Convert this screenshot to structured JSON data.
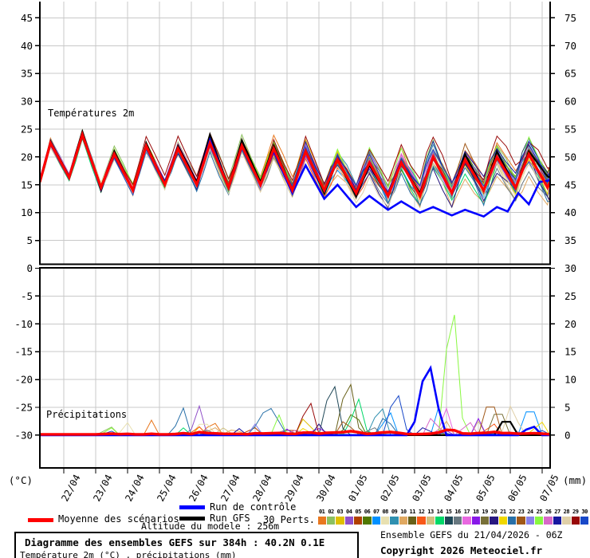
{
  "legend": {
    "mean_label": "Moyenne des scénarios",
    "control_label": "Run de contrôle",
    "gfs_label": "Run GFS",
    "perts_label": "30 Perts.",
    "mean_color": "#ff0000",
    "control_color": "#0000ff",
    "gfs_color": "#000000"
  },
  "perturbations": {
    "labels": [
      "01",
      "02",
      "03",
      "04",
      "05",
      "06",
      "07",
      "08",
      "09",
      "10",
      "11",
      "12",
      "13",
      "14",
      "15",
      "16",
      "17",
      "18",
      "19",
      "20",
      "21",
      "22",
      "23",
      "24",
      "25",
      "26",
      "27",
      "28",
      "29",
      "30"
    ],
    "colors": [
      "#e87820",
      "#8cc060",
      "#e0c000",
      "#9050c8",
      "#b04000",
      "#507800",
      "#0090ff",
      "#e8e0b0",
      "#3090b0",
      "#e0a860",
      "#686018",
      "#f85818",
      "#d0c080",
      "#00d868",
      "#204858",
      "#687880",
      "#e868e0",
      "#8818e8",
      "#787038",
      "#281880",
      "#f0d800",
      "#2870a8",
      "#a05818",
      "#8880e8",
      "#88f840",
      "#d868c8",
      "#1818a0",
      "#e0d0a8",
      "#980808",
      "#1848c8"
    ]
  },
  "footer": {
    "altitude": "Altitude du modele : 256m",
    "box_title": "Diagramme des ensembles GEFS sur 384h : 40.2N 0.1E",
    "box_subtitle": "Température 2m (°C) , précipitations (mm)",
    "credit_line1": "Ensemble GEFS du 21/04/2026 - 06Z",
    "credit_line2": "Copyright 2026 Meteociel.fr"
  },
  "chart_data": {
    "type": "line",
    "title": "Diagramme des ensembles GEFS sur 384h : 40.2N 0.1E",
    "panel_labels": {
      "temperature": "Températures 2m",
      "precipitation": "Précipitations"
    },
    "x_axis": {
      "labels": [
        "22/04",
        "23/04",
        "24/04",
        "25/04",
        "26/04",
        "27/04",
        "28/04",
        "29/04",
        "30/04",
        "01/05",
        "02/05",
        "03/05",
        "04/05",
        "05/05",
        "06/05",
        "07/05"
      ],
      "hours_range": [
        0,
        384
      ],
      "first_label_hour": 18,
      "hours_per_label": 24
    },
    "temp_axis": {
      "unit": "(°C)",
      "ticks": [
        45,
        40,
        35,
        30,
        25,
        20,
        15,
        10,
        5,
        0,
        -5,
        -10,
        -15,
        -20,
        -25,
        -30
      ],
      "zero_line": 0
    },
    "precip_axis": {
      "unit": "(mm)",
      "ticks": [
        75,
        70,
        65,
        60,
        55,
        50,
        45,
        40,
        35,
        30,
        25,
        20,
        15,
        10,
        5,
        0
      ]
    },
    "grid": true,
    "temperature": {
      "start_value": 15.5,
      "end_value": 15.5,
      "daily": [
        {
          "date": "21/04",
          "max": 22.5
        },
        {
          "date": "22/04",
          "min": 16.3,
          "max": 24.0
        },
        {
          "date": "23/04",
          "min": 14.5,
          "max": 20.5
        },
        {
          "date": "24/04",
          "min": 14.0,
          "max": 22.0
        },
        {
          "date": "25/04",
          "min": 15.0,
          "max": 21.5
        },
        {
          "date": "26/04",
          "min": 15.0,
          "max": 22.5
        },
        {
          "date": "27/04",
          "min": 14.5,
          "max": 22.0
        },
        {
          "date": "28/04",
          "min": 15.0,
          "max": 21.5
        },
        {
          "date": "29/04",
          "min": 14.0,
          "max": 21.0
        },
        {
          "date": "30/04",
          "min": 14.0,
          "max": 19.5
        },
        {
          "date": "01/05",
          "min": 13.5,
          "max": 19.0
        },
        {
          "date": "02/05",
          "min": 13.0,
          "max": 19.0
        },
        {
          "date": "03/05",
          "min": 13.0,
          "max": 20.0
        },
        {
          "date": "04/05",
          "min": 13.5,
          "max": 19.5
        },
        {
          "date": "05/05",
          "min": 14.0,
          "max": 20.0
        },
        {
          "date": "06/05",
          "min": 14.5,
          "max": 20.5
        },
        {
          "date": "07/05",
          "min": 14.5
        }
      ],
      "control_t": [
        0,
        8,
        22,
        32,
        46,
        56,
        70,
        80,
        94,
        104,
        118,
        128,
        142,
        152,
        166,
        176,
        190,
        200,
        214,
        224,
        238,
        248,
        262,
        272,
        286,
        296,
        310,
        320,
        334,
        344,
        352,
        360,
        368,
        376,
        384
      ],
      "control_v": [
        15.8,
        22.3,
        16.2,
        24.0,
        14.3,
        20.5,
        14.0,
        22.0,
        15.0,
        21.5,
        15.0,
        23.0,
        14.5,
        22.0,
        15.0,
        21.0,
        13.5,
        18.5,
        12.5,
        15.0,
        11.0,
        13.0,
        10.5,
        12.0,
        10.0,
        11.0,
        9.5,
        10.5,
        9.3,
        11.0,
        10.2,
        13.5,
        11.5,
        15.5,
        15.8
      ],
      "gfs_t": [
        0,
        8,
        22,
        32,
        46,
        56,
        70,
        80,
        94,
        104,
        118,
        128,
        142,
        152,
        166,
        176,
        190,
        200,
        214,
        224,
        238,
        248,
        262,
        272,
        286,
        296,
        310,
        320,
        334,
        344,
        358,
        368,
        382,
        384
      ],
      "gfs_v": [
        15.5,
        22.8,
        16.5,
        24.5,
        14.0,
        21.0,
        14.0,
        22.5,
        15.0,
        22.0,
        15.5,
        24.0,
        14.5,
        23.0,
        15.5,
        22.0,
        14.0,
        21.0,
        13.5,
        19.5,
        13.0,
        18.5,
        13.0,
        19.0,
        13.5,
        20.0,
        13.5,
        20.5,
        14.0,
        21.0,
        14.5,
        21.0,
        16.5,
        16.3
      ],
      "ensemble": {
        "members": 30,
        "peak_spread_start": 0.9,
        "peak_spread_end": 3.7,
        "trough_spread_start": 0.65,
        "trough_spread_end": 2.95
      }
    },
    "precipitation": {
      "step_hours": 6,
      "events": [
        [
          1,
          84,
          2.7,
          6
        ],
        [
          1,
          130,
          2.8,
          8
        ],
        [
          2,
          52,
          2.2,
          6
        ],
        [
          3,
          120,
          1.5,
          5
        ],
        [
          3,
          200,
          4.3,
          6
        ],
        [
          4,
          119,
          6.3,
          6
        ],
        [
          5,
          160,
          2.0,
          6
        ],
        [
          6,
          236,
          4.6,
          10
        ],
        [
          7,
          262,
          6.0,
          6
        ],
        [
          7,
          300,
          5.0,
          6
        ],
        [
          7,
          369,
          6.7,
          8
        ],
        [
          8,
          65,
          2.7,
          6
        ],
        [
          8,
          123,
          3.9,
          6
        ],
        [
          9,
          256,
          6.3,
          8
        ],
        [
          10,
          130,
          2.0,
          6
        ],
        [
          10,
          305,
          3.0,
          6
        ],
        [
          11,
          232,
          11.7,
          9
        ],
        [
          12,
          118,
          2.5,
          5
        ],
        [
          12,
          340,
          3.0,
          6
        ],
        [
          13,
          330,
          2.5,
          6
        ],
        [
          14,
          108,
          1.3,
          5
        ],
        [
          14,
          239,
          7.4,
          8
        ],
        [
          15,
          220,
          11.2,
          9
        ],
        [
          16,
          250,
          2.0,
          6
        ],
        [
          17,
          305,
          5.8,
          6
        ],
        [
          18,
          330,
          3.0,
          6
        ],
        [
          19,
          345,
          6.0,
          8
        ],
        [
          20,
          210,
          2.0,
          6
        ],
        [
          21,
          200,
          2.0,
          5
        ],
        [
          21,
          376,
          3.5,
          6
        ],
        [
          22,
          107,
          5.7,
          7
        ],
        [
          22,
          172,
          5.6,
          14
        ],
        [
          22,
          260,
          4.0,
          8
        ],
        [
          23,
          230,
          3.0,
          6
        ],
        [
          23,
          339,
          8.1,
          8
        ],
        [
          24,
          162,
          2.0,
          6
        ],
        [
          25,
          52,
          2.2,
          5
        ],
        [
          25,
          180,
          3.6,
          6
        ],
        [
          25,
          310,
          27.8,
          9
        ],
        [
          26,
          296,
          4.5,
          6
        ],
        [
          26,
          322,
          3.4,
          6
        ],
        [
          27,
          290,
          2.0,
          6
        ],
        [
          28,
          355,
          6.0,
          8
        ],
        [
          29,
          202,
          8.0,
          7
        ],
        [
          30,
          52,
          1.2,
          5
        ],
        [
          30,
          268,
          9.1,
          9
        ],
        [
          "c",
          292,
          14.5,
          12
        ],
        [
          "c",
          370,
          2.0,
          8
        ],
        [
          "g",
          351,
          4.8,
          6
        ]
      ],
      "background_noise_window": [
        120,
        380
      ],
      "background_noise_max_mm": 1.6
    }
  }
}
